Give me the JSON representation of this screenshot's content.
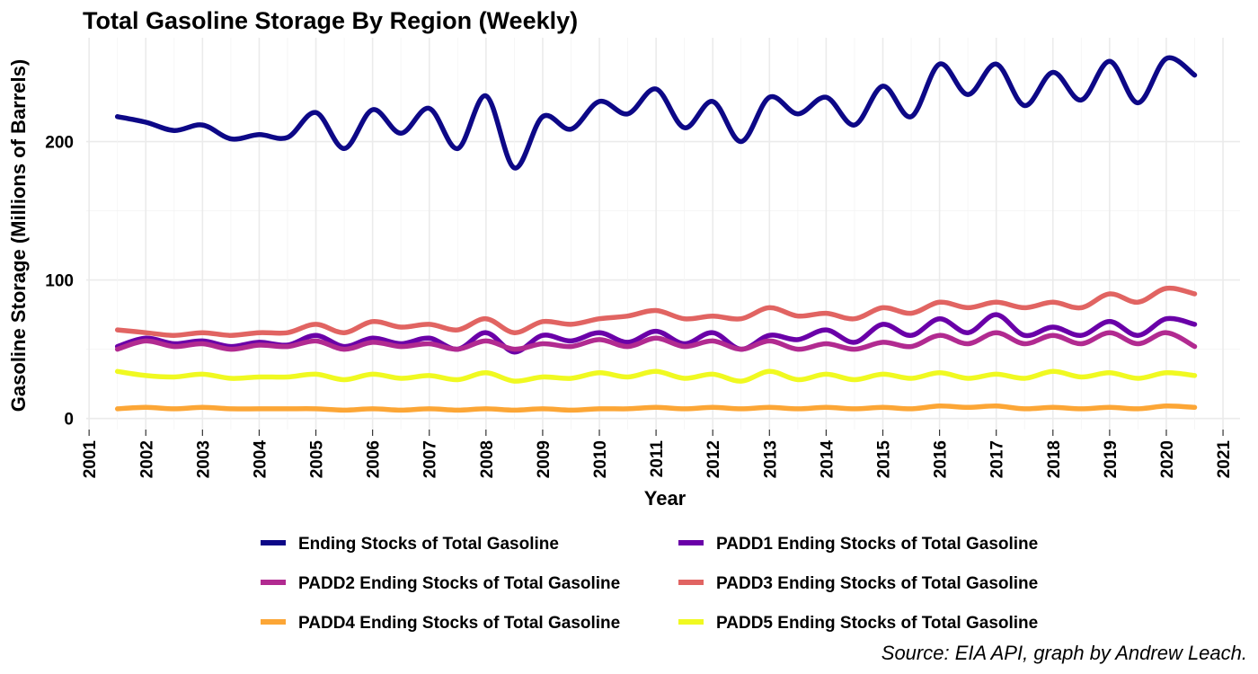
{
  "chart_data": {
    "type": "line",
    "title": "Total Gasoline Storage By Region (Weekly)",
    "xlabel": "Year",
    "ylabel": "Gasoline Storage (Millions of Barrels)",
    "caption": "Source: EIA API, graph by Andrew Leach.",
    "xlim": [
      2000.95,
      2021.3
    ],
    "ylim": [
      -8,
      275
    ],
    "x_ticks": [
      "2001",
      "2002",
      "2003",
      "2004",
      "2005",
      "2006",
      "2007",
      "2008",
      "2009",
      "2010",
      "2011",
      "2012",
      "2013",
      "2014",
      "2015",
      "2016",
      "2017",
      "2018",
      "2019",
      "2020",
      "2021"
    ],
    "y_ticks": [
      "0",
      "100",
      "200"
    ],
    "grid": true,
    "legend_position": "bottom",
    "x": [
      2001.5,
      2002.0,
      2002.5,
      2003.0,
      2003.5,
      2004.0,
      2004.5,
      2005.0,
      2005.5,
      2006.0,
      2006.5,
      2007.0,
      2007.5,
      2008.0,
      2008.5,
      2009.0,
      2009.5,
      2010.0,
      2010.5,
      2011.0,
      2011.5,
      2012.0,
      2012.5,
      2013.0,
      2013.5,
      2014.0,
      2014.5,
      2015.0,
      2015.5,
      2016.0,
      2016.5,
      2017.0,
      2017.5,
      2018.0,
      2018.5,
      2019.0,
      2019.5,
      2020.0,
      2020.5
    ],
    "series": [
      {
        "name": "Ending Stocks of Total Gasoline",
        "color": "#0d0887",
        "values": [
          218,
          214,
          208,
          212,
          202,
          205,
          203,
          221,
          195,
          223,
          206,
          224,
          195,
          233,
          181,
          218,
          209,
          229,
          220,
          238,
          210,
          229,
          200,
          232,
          220,
          232,
          212,
          240,
          218,
          256,
          234,
          256,
          226,
          250,
          230,
          258,
          228,
          260,
          248
        ]
      },
      {
        "name": "PADD1 Ending Stocks of Total Gasoline",
        "color": "#6a00a8",
        "values": [
          52,
          58,
          54,
          56,
          52,
          55,
          53,
          60,
          52,
          58,
          54,
          58,
          50,
          62,
          48,
          60,
          56,
          62,
          55,
          63,
          54,
          62,
          50,
          60,
          57,
          64,
          55,
          68,
          60,
          72,
          62,
          75,
          60,
          66,
          60,
          70,
          60,
          72,
          68
        ]
      },
      {
        "name": "PADD2 Ending Stocks of Total Gasoline",
        "color": "#b12a90",
        "values": [
          50,
          56,
          52,
          54,
          50,
          53,
          52,
          56,
          50,
          55,
          52,
          54,
          50,
          56,
          50,
          54,
          52,
          57,
          52,
          58,
          52,
          56,
          50,
          56,
          50,
          54,
          50,
          55,
          52,
          60,
          54,
          62,
          54,
          60,
          54,
          62,
          54,
          62,
          52
        ]
      },
      {
        "name": "PADD3 Ending Stocks of Total Gasoline",
        "color": "#e16462",
        "values": [
          64,
          62,
          60,
          62,
          60,
          62,
          62,
          68,
          62,
          70,
          66,
          68,
          64,
          72,
          62,
          70,
          68,
          72,
          74,
          78,
          72,
          74,
          72,
          80,
          74,
          76,
          72,
          80,
          76,
          84,
          80,
          84,
          80,
          84,
          80,
          90,
          84,
          94,
          90
        ]
      },
      {
        "name": "PADD4 Ending Stocks of Total Gasoline",
        "color": "#fca636",
        "values": [
          7,
          8,
          7,
          8,
          7,
          7,
          7,
          7,
          6,
          7,
          6,
          7,
          6,
          7,
          6,
          7,
          6,
          7,
          7,
          8,
          7,
          8,
          7,
          8,
          7,
          8,
          7,
          8,
          7,
          9,
          8,
          9,
          7,
          8,
          7,
          8,
          7,
          9,
          8
        ]
      },
      {
        "name": "PADD5 Ending Stocks of Total Gasoline",
        "color": "#f0f921",
        "values": [
          34,
          31,
          30,
          32,
          29,
          30,
          30,
          32,
          28,
          32,
          29,
          31,
          28,
          33,
          27,
          30,
          29,
          33,
          30,
          34,
          29,
          32,
          27,
          34,
          28,
          32,
          28,
          32,
          29,
          33,
          29,
          32,
          29,
          34,
          30,
          33,
          29,
          33,
          31
        ]
      }
    ]
  }
}
